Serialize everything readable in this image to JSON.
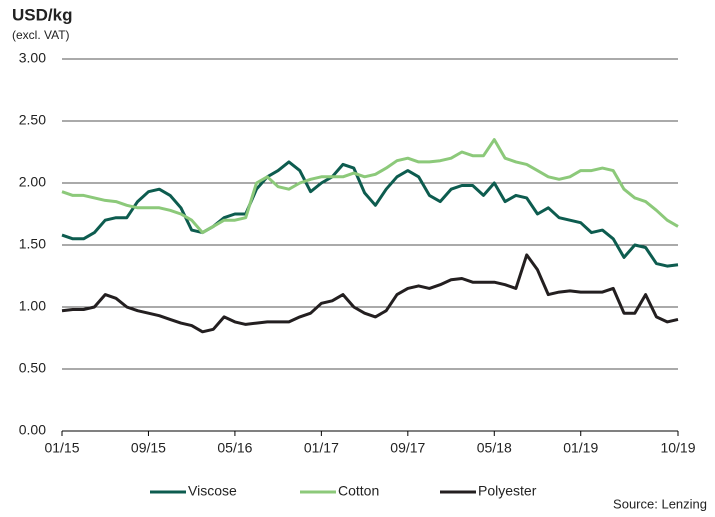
{
  "chart_data": {
    "type": "line",
    "title": "USD/kg",
    "subtitle": "(excl. VAT)",
    "source": "Source: Lenzing",
    "categories": [
      "01/15",
      null,
      null,
      null,
      null,
      null,
      null,
      null,
      "09/15",
      null,
      null,
      null,
      null,
      null,
      null,
      null,
      "05/16",
      null,
      null,
      null,
      null,
      null,
      null,
      null,
      "01/17",
      null,
      null,
      null,
      null,
      null,
      null,
      null,
      "09/17",
      null,
      null,
      null,
      null,
      null,
      null,
      null,
      "05/18",
      null,
      null,
      null,
      null,
      null,
      null,
      null,
      "01/19",
      null,
      null,
      null,
      null,
      null,
      null,
      null,
      null,
      "10/19"
    ],
    "series": [
      {
        "name": "Viscose",
        "color": "#0d5c4f",
        "values": [
          1.58,
          1.55,
          1.55,
          1.6,
          1.7,
          1.72,
          1.72,
          1.85,
          1.93,
          1.95,
          1.9,
          1.8,
          1.62,
          1.6,
          1.65,
          1.72,
          1.75,
          1.75,
          1.95,
          2.05,
          2.1,
          2.17,
          2.1,
          1.93,
          2.0,
          2.05,
          2.15,
          2.12,
          1.92,
          1.82,
          1.95,
          2.05,
          2.1,
          2.05,
          1.9,
          1.85,
          1.95,
          1.98,
          1.98,
          1.9,
          2.0,
          1.85,
          1.9,
          1.88,
          1.75,
          1.8,
          1.72,
          1.7,
          1.68,
          1.6,
          1.62,
          1.55,
          1.4,
          1.5,
          1.48,
          1.35,
          1.33,
          1.34
        ]
      },
      {
        "name": "Cotton",
        "color": "#8cc97a",
        "values": [
          1.93,
          1.9,
          1.9,
          1.88,
          1.86,
          1.85,
          1.82,
          1.8,
          1.8,
          1.8,
          1.78,
          1.75,
          1.7,
          1.6,
          1.65,
          1.7,
          1.7,
          1.72,
          2.0,
          2.05,
          1.97,
          1.95,
          2.0,
          2.03,
          2.05,
          2.05,
          2.05,
          2.08,
          2.05,
          2.07,
          2.12,
          2.18,
          2.2,
          2.17,
          2.17,
          2.18,
          2.2,
          2.25,
          2.22,
          2.22,
          2.35,
          2.2,
          2.17,
          2.15,
          2.1,
          2.05,
          2.03,
          2.05,
          2.1,
          2.1,
          2.12,
          2.1,
          1.95,
          1.88,
          1.85,
          1.78,
          1.7,
          1.65
        ]
      },
      {
        "name": "Polyester",
        "color": "#231f20",
        "values": [
          0.97,
          0.98,
          0.98,
          1.0,
          1.1,
          1.07,
          1.0,
          0.97,
          0.95,
          0.93,
          0.9,
          0.87,
          0.85,
          0.8,
          0.82,
          0.92,
          0.88,
          0.86,
          0.87,
          0.88,
          0.88,
          0.88,
          0.92,
          0.95,
          1.03,
          1.05,
          1.1,
          1.0,
          0.95,
          0.92,
          0.97,
          1.1,
          1.15,
          1.17,
          1.15,
          1.18,
          1.22,
          1.23,
          1.2,
          1.2,
          1.2,
          1.18,
          1.15,
          1.42,
          1.3,
          1.1,
          1.12,
          1.13,
          1.12,
          1.12,
          1.12,
          1.15,
          0.95,
          0.95,
          1.1,
          0.92,
          0.88,
          0.9
        ]
      }
    ],
    "ylim": [
      0,
      3
    ],
    "yticks": [
      {
        "value": 0,
        "label": "0.00"
      },
      {
        "value": 0.5,
        "label": "0.50"
      },
      {
        "value": 1,
        "label": "1.00"
      },
      {
        "value": 1.5,
        "label": "1.50"
      },
      {
        "value": 2,
        "label": "2.00"
      },
      {
        "value": 2.5,
        "label": "2.50"
      },
      {
        "value": 3,
        "label": "3.00"
      }
    ],
    "grid": true,
    "legend": "bottom"
  }
}
